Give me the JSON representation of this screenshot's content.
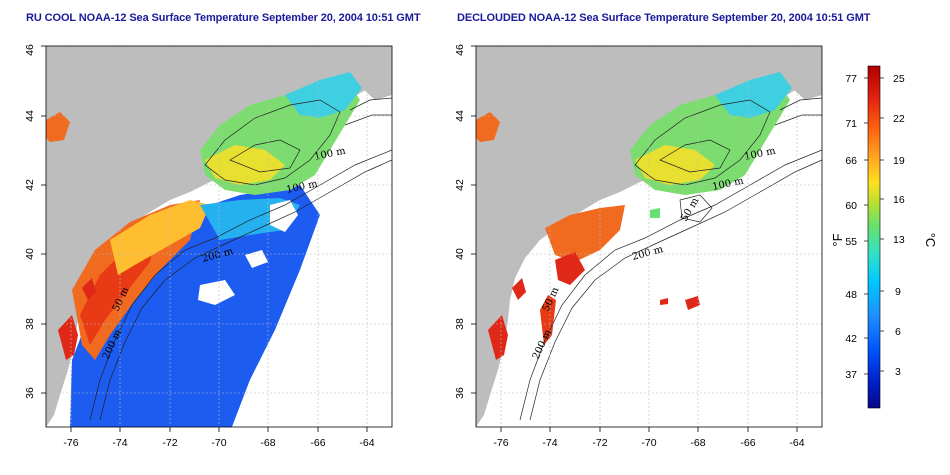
{
  "panels": [
    {
      "title": "RU COOL NOAA-12 Sea Surface Temperature September 20, 2004 10:51 GMT",
      "depth_labels": [
        "100 m",
        "100 m",
        "200 m",
        "50 m",
        "200 m"
      ]
    },
    {
      "title": "DECLOUDED NOAA-12 Sea Surface Temperature September 20, 2004 10:51 GMT",
      "depth_labels": [
        "100 m",
        "100 m",
        "50 m",
        "200 m",
        "50 m",
        "200 m"
      ]
    }
  ],
  "axes": {
    "x_ticks": [
      "-76",
      "-74",
      "-72",
      "-70",
      "-68",
      "-66",
      "-64"
    ],
    "y_ticks": [
      "36",
      "38",
      "40",
      "42",
      "44",
      "46"
    ],
    "lon_range": [
      -77,
      -63
    ],
    "lat_range": [
      35,
      46
    ],
    "grid": true
  },
  "colorbar": {
    "fahrenheit_unit": "°F",
    "celsius_unit": "°C",
    "fahrenheit_ticks": [
      "77",
      "71",
      "66",
      "60",
      "55",
      "48",
      "42",
      "37"
    ],
    "celsius_ticks": [
      "25",
      "22",
      "19",
      "16",
      "13",
      "9",
      "6",
      "3"
    ],
    "colors": [
      "#08088a",
      "#0022cc",
      "#0055ff",
      "#1e90ff",
      "#00c8ff",
      "#33e0c8",
      "#66e070",
      "#b8e030",
      "#ffe020",
      "#ffa020",
      "#ff6010",
      "#e02010",
      "#b00000"
    ]
  },
  "colors": {
    "land": "#bdbdbd",
    "ocean_empty": "#ffffff",
    "title": "#1a1a9c"
  }
}
